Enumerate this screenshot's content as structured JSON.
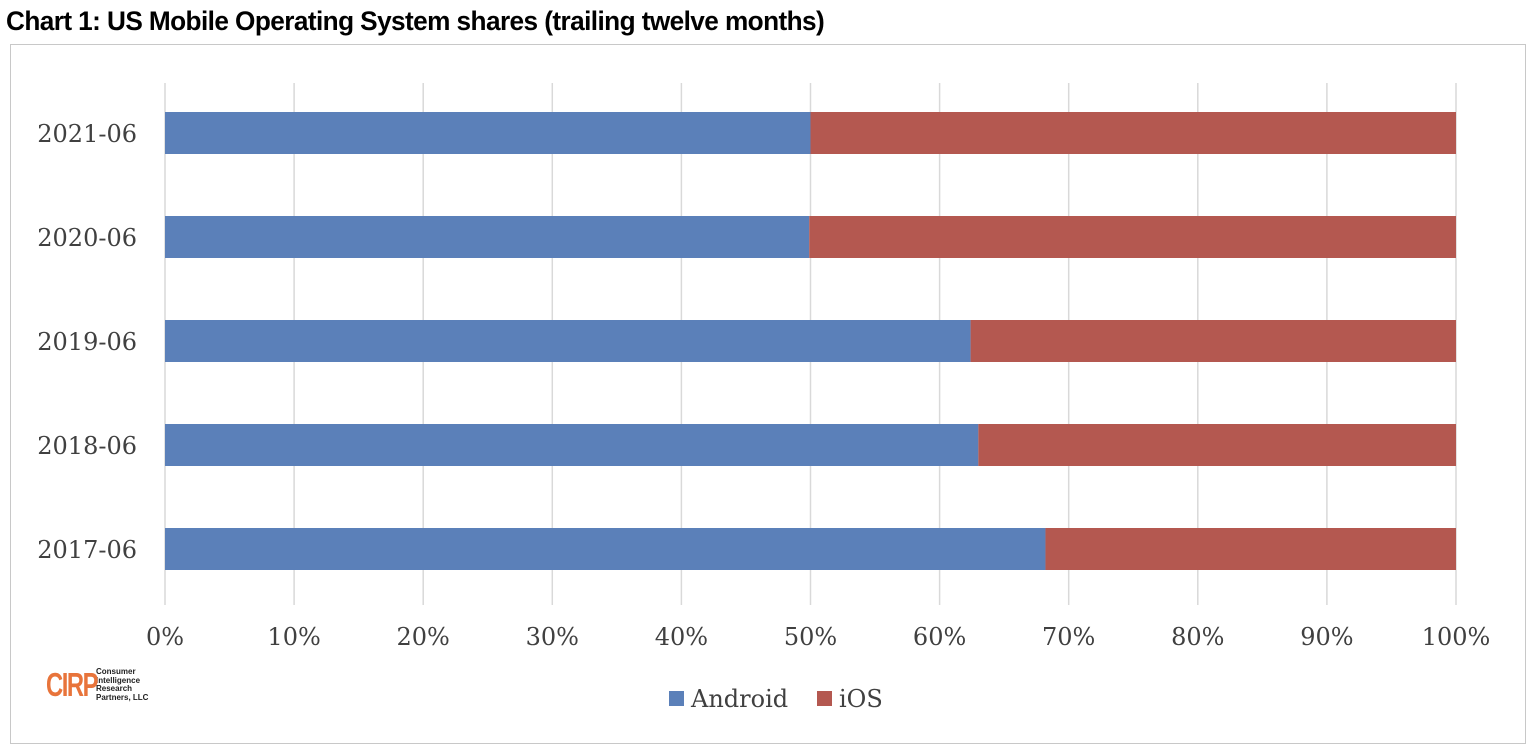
{
  "page": {
    "title": "Chart 1: US Mobile Operating System shares (trailing twelve months)"
  },
  "logo": {
    "mark": "CIRP",
    "lines": [
      "Consumer",
      "Intelligence",
      "Research",
      "Partners, LLC"
    ]
  },
  "chart_data": {
    "type": "bar",
    "orientation": "horizontal",
    "stacked": true,
    "normalized": true,
    "title": "Chart 1: US Mobile Operating System shares (trailing twelve months)",
    "xlabel": "",
    "ylabel": "",
    "categories": [
      "2021-06",
      "2020-06",
      "2019-06",
      "2018-06",
      "2017-06"
    ],
    "series": [
      {
        "name": "Android",
        "color": "#5b80b9",
        "values": [
          50,
          49.9,
          62.4,
          63,
          68.2
        ]
      },
      {
        "name": "iOS",
        "color": "#b45850",
        "values": [
          50,
          50.1,
          37.6,
          37,
          31.8
        ]
      }
    ],
    "xlim": [
      0,
      100
    ],
    "x_ticks": [
      "0%",
      "10%",
      "20%",
      "30%",
      "40%",
      "50%",
      "60%",
      "70%",
      "80%",
      "90%",
      "100%"
    ],
    "grid": "vertical",
    "legend": {
      "position": "bottom",
      "entries": [
        "Android",
        "iOS"
      ]
    }
  }
}
